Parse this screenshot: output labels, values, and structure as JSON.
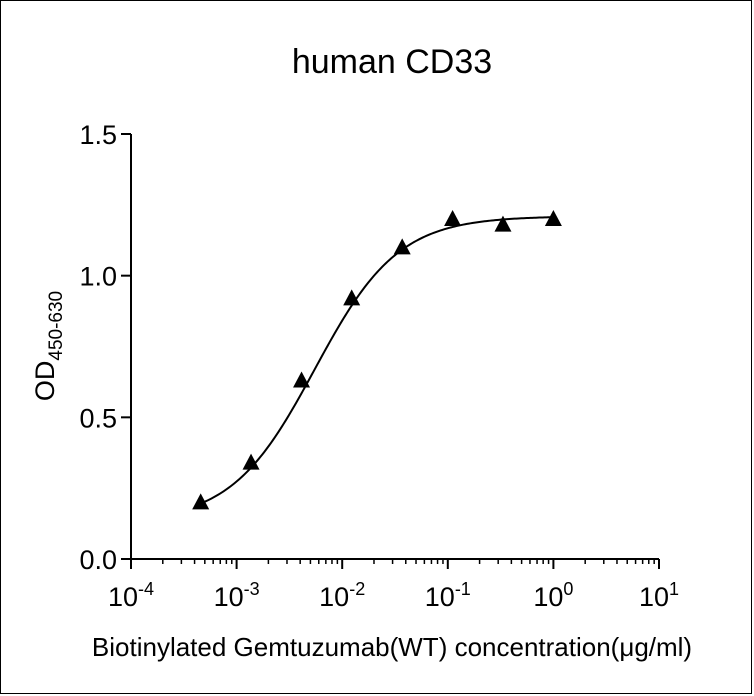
{
  "chart_data": {
    "type": "scatter",
    "title": "human CD33",
    "xlabel": "Biotinylated Gemtuzumab(WT) concentration(μg/ml)",
    "ylabel": {
      "main": "OD",
      "subscript": "450-630"
    },
    "x_scale": "log",
    "xlim": [
      0.0001,
      10
    ],
    "ylim": [
      0,
      1.5
    ],
    "x_ticks": [
      {
        "base": "10",
        "exp": "-4"
      },
      {
        "base": "10",
        "exp": "-3"
      },
      {
        "base": "10",
        "exp": "-2"
      },
      {
        "base": "10",
        "exp": "-1"
      },
      {
        "base": "10",
        "exp": "0"
      },
      {
        "base": "10",
        "exp": "1"
      }
    ],
    "y_ticks": [
      "0.0",
      "0.5",
      "1.0",
      "1.5"
    ],
    "marker": "triangle",
    "color": "#000000",
    "grid": false,
    "legend": "none",
    "series": [
      {
        "x": [
          0.000457,
          0.00137,
          0.00412,
          0.0123,
          0.037,
          0.111,
          0.333,
          1.0
        ],
        "y": [
          0.2,
          0.34,
          0.63,
          0.92,
          1.1,
          1.2,
          1.18,
          1.2
        ]
      }
    ],
    "fit_curve": {
      "model": "4PL",
      "bottom": 0.13,
      "top": 1.21,
      "ec50": 0.0055,
      "hill": 1.1
    }
  }
}
